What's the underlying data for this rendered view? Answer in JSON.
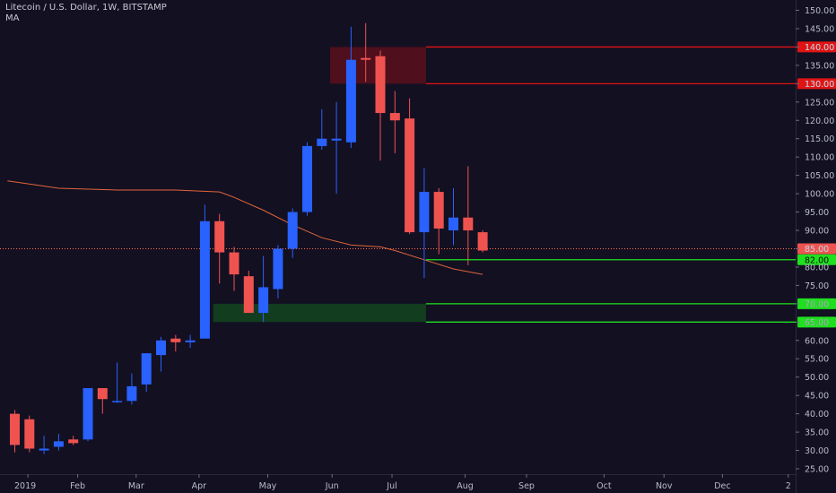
{
  "header": {
    "title": "Litecoin / U.S. Dollar, 1W, BITSTAMP",
    "indicator": "MA"
  },
  "colors": {
    "background": "#131022",
    "up": "#2962ff",
    "down": "#ef5350",
    "ma": "#e0653a",
    "resistance": "#e01414",
    "support": "#1fe01f",
    "price_line": "#ff7043"
  },
  "chart_data": {
    "type": "candlestick",
    "x_tick_labels": [
      "2019",
      "Feb",
      "Mar",
      "Apr",
      "May",
      "Jun",
      "Jul",
      "Aug",
      "Sep",
      "Oct",
      "Nov",
      "Dec",
      "2"
    ],
    "y_tick_labels": [
      "25.00",
      "30.00",
      "35.00",
      "40.00",
      "45.00",
      "50.00",
      "55.00",
      "60.00",
      "65.00",
      "70.00",
      "75.00",
      "80.00",
      "85.00",
      "90.00",
      "95.00",
      "100.00",
      "105.00",
      "110.00",
      "115.00",
      "120.00",
      "125.00",
      "130.00",
      "135.00",
      "140.00",
      "145.00",
      "150.00"
    ],
    "ylim": [
      22.5,
      152.5
    ],
    "weeks": [
      {
        "week": 0,
        "o": 40.0,
        "h": 41.0,
        "l": 29.5,
        "c": 31.5
      },
      {
        "week": 1,
        "o": 38.5,
        "h": 39.5,
        "l": 29.5,
        "c": 30.5
      },
      {
        "week": 2,
        "o": 30.0,
        "h": 34.0,
        "l": 29.0,
        "c": 30.5
      },
      {
        "week": 3,
        "o": 31.0,
        "h": 34.5,
        "l": 30.0,
        "c": 32.5
      },
      {
        "week": 4,
        "o": 33.0,
        "h": 34.0,
        "l": 31.5,
        "c": 32.0
      },
      {
        "week": 5,
        "o": 33.0,
        "h": 47.0,
        "l": 32.5,
        "c": 47.0
      },
      {
        "week": 6,
        "o": 47.0,
        "h": 47.0,
        "l": 40.0,
        "c": 44.0
      },
      {
        "week": 7,
        "o": 43.5,
        "h": 54.0,
        "l": 43.0,
        "c": 43.5
      },
      {
        "week": 8,
        "o": 43.5,
        "h": 51.0,
        "l": 42.5,
        "c": 47.5
      },
      {
        "week": 9,
        "o": 48.0,
        "h": 56.5,
        "l": 46.0,
        "c": 56.5
      },
      {
        "week": 10,
        "o": 56.0,
        "h": 61.0,
        "l": 51.5,
        "c": 60.0
      },
      {
        "week": 11,
        "o": 60.5,
        "h": 61.5,
        "l": 57.0,
        "c": 59.5
      },
      {
        "week": 12,
        "o": 59.5,
        "h": 61.5,
        "l": 58.0,
        "c": 60.0
      },
      {
        "week": 13,
        "o": 60.5,
        "h": 97.0,
        "l": 60.5,
        "c": 92.5
      },
      {
        "week": 14,
        "o": 92.5,
        "h": 94.5,
        "l": 75.5,
        "c": 84.0
      },
      {
        "week": 15,
        "o": 84.0,
        "h": 85.5,
        "l": 73.5,
        "c": 78.0
      },
      {
        "week": 16,
        "o": 77.5,
        "h": 79.0,
        "l": 67.5,
        "c": 67.5
      },
      {
        "week": 17,
        "o": 67.5,
        "h": 83.0,
        "l": 65.0,
        "c": 74.5
      },
      {
        "week": 18,
        "o": 74.0,
        "h": 86.0,
        "l": 71.5,
        "c": 85.0
      },
      {
        "week": 19,
        "o": 85.0,
        "h": 96.0,
        "l": 82.5,
        "c": 95.0
      },
      {
        "week": 20,
        "o": 95.0,
        "h": 114.0,
        "l": 94.0,
        "c": 113.0
      },
      {
        "week": 21,
        "o": 113.0,
        "h": 123.0,
        "l": 112.0,
        "c": 115.0
      },
      {
        "week": 22,
        "o": 114.5,
        "h": 125.0,
        "l": 100.0,
        "c": 115.0
      },
      {
        "week": 23,
        "o": 114.0,
        "h": 145.5,
        "l": 112.5,
        "c": 136.5
      },
      {
        "week": 24,
        "o": 137.0,
        "h": 146.5,
        "l": 130.5,
        "c": 136.5
      },
      {
        "week": 25,
        "o": 137.5,
        "h": 139.0,
        "l": 109.0,
        "c": 122.0
      },
      {
        "week": 26,
        "o": 122.0,
        "h": 128.0,
        "l": 111.0,
        "c": 120.0
      },
      {
        "week": 27,
        "o": 120.5,
        "h": 126.0,
        "l": 89.0,
        "c": 89.5
      },
      {
        "week": 28,
        "o": 89.5,
        "h": 107.0,
        "l": 77.0,
        "c": 100.5
      },
      {
        "week": 29,
        "o": 100.5,
        "h": 101.5,
        "l": 83.5,
        "c": 90.5
      },
      {
        "week": 30,
        "o": 90.0,
        "h": 101.5,
        "l": 86.0,
        "c": 93.5
      },
      {
        "week": 31,
        "o": 93.5,
        "h": 107.5,
        "l": 80.5,
        "c": 90.0
      },
      {
        "week": 32,
        "o": 89.5,
        "h": 90.0,
        "l": 84.0,
        "c": 84.5
      }
    ],
    "moving_average": [
      {
        "week": -0.5,
        "v": 103.5
      },
      {
        "week": 3,
        "v": 101.5
      },
      {
        "week": 7,
        "v": 101.0
      },
      {
        "week": 11,
        "v": 101.0
      },
      {
        "week": 14,
        "v": 100.5
      },
      {
        "week": 15,
        "v": 99.0
      },
      {
        "week": 17,
        "v": 95.5
      },
      {
        "week": 19,
        "v": 91.5
      },
      {
        "week": 21,
        "v": 88.0
      },
      {
        "week": 23,
        "v": 86.0
      },
      {
        "week": 25,
        "v": 85.5
      },
      {
        "week": 26,
        "v": 84.5
      },
      {
        "week": 28,
        "v": 82.0
      },
      {
        "week": 30,
        "v": 79.5
      },
      {
        "week": 32,
        "v": 78.0
      }
    ],
    "zones": [
      {
        "name": "resistance-zone",
        "week_from": 22,
        "week_to": 28,
        "low": 130.0,
        "high": 140.0
      },
      {
        "name": "support-zone",
        "week_from": 14,
        "week_to": 28,
        "low": 65.0,
        "high": 70.0
      }
    ],
    "levels": [
      {
        "value": 140.0,
        "label": "140.00",
        "type": "resistance"
      },
      {
        "value": 130.0,
        "label": "130.00",
        "type": "resistance"
      },
      {
        "value": 82.0,
        "label": "82.00",
        "type": "support"
      },
      {
        "value": 70.0,
        "label": "70.00",
        "type": "support"
      },
      {
        "value": 65.0,
        "label": "65.00",
        "type": "support"
      }
    ],
    "current_price": {
      "value": 85.0,
      "label": "85.00"
    }
  }
}
